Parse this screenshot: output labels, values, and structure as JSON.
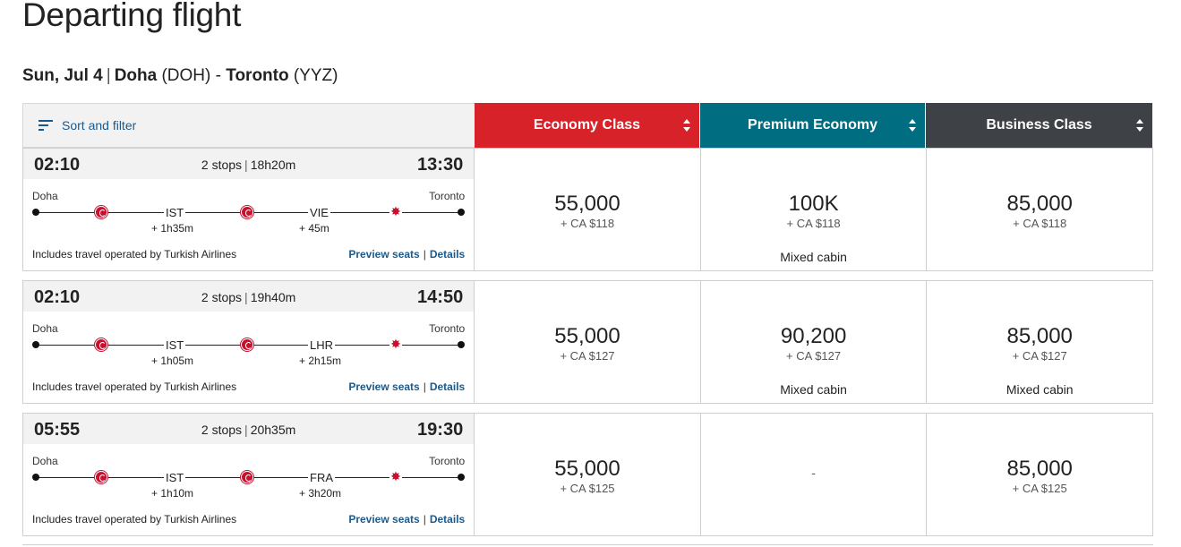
{
  "page": {
    "title": "Departing flight"
  },
  "route": {
    "date": "Sun, Jul 4",
    "separator": "|",
    "origin_city": "Doha",
    "origin_code": "(DOH)",
    "dash": "-",
    "dest_city": "Toronto",
    "dest_code": "(YYZ)"
  },
  "header": {
    "sort_label": "Sort and filter",
    "cabins": [
      {
        "label": "Economy Class",
        "color": "#d8222a"
      },
      {
        "label": "Premium Economy",
        "color": "#006d80"
      },
      {
        "label": "Business Class",
        "color": "#3e4146"
      }
    ]
  },
  "colors": {
    "link": "#1c5a8c",
    "airline_red": "#c8102e"
  },
  "flights": [
    {
      "departure": "02:10",
      "arrival": "13:30",
      "stops": "2 stops",
      "duration": "18h20m",
      "from": "Doha",
      "to": "Toronto",
      "stop1": "IST",
      "layover1": "+ 1h35m",
      "stop2": "VIE",
      "layover2": "+ 45m",
      "operated": "Includes travel operated by Turkish Airlines",
      "preview": "Preview seats",
      "details": "Details",
      "fares": [
        {
          "points": "55,000",
          "tax": "+ CA $118",
          "note": ""
        },
        {
          "points": "100K",
          "tax": "+ CA $118",
          "note": "Mixed cabin"
        },
        {
          "points": "85,000",
          "tax": "+ CA $118",
          "note": ""
        }
      ]
    },
    {
      "departure": "02:10",
      "arrival": "14:50",
      "stops": "2 stops",
      "duration": "19h40m",
      "from": "Doha",
      "to": "Toronto",
      "stop1": "IST",
      "layover1": "+ 1h05m",
      "stop2": "LHR",
      "layover2": "+ 2h15m",
      "operated": "Includes travel operated by Turkish Airlines",
      "preview": "Preview seats",
      "details": "Details",
      "fares": [
        {
          "points": "55,000",
          "tax": "+ CA $127",
          "note": ""
        },
        {
          "points": "90,200",
          "tax": "+ CA $127",
          "note": "Mixed cabin"
        },
        {
          "points": "85,000",
          "tax": "+ CA $127",
          "note": "Mixed cabin"
        }
      ]
    },
    {
      "departure": "05:55",
      "arrival": "19:30",
      "stops": "2 stops",
      "duration": "20h35m",
      "from": "Doha",
      "to": "Toronto",
      "stop1": "IST",
      "layover1": "+ 1h10m",
      "stop2": "FRA",
      "layover2": "+ 3h20m",
      "operated": "Includes travel operated by Turkish Airlines",
      "preview": "Preview seats",
      "details": "Details",
      "fares": [
        {
          "points": "55,000",
          "tax": "+ CA $125",
          "note": ""
        },
        {
          "unavailable": "-"
        },
        {
          "points": "85,000",
          "tax": "+ CA $125",
          "note": ""
        }
      ]
    }
  ]
}
